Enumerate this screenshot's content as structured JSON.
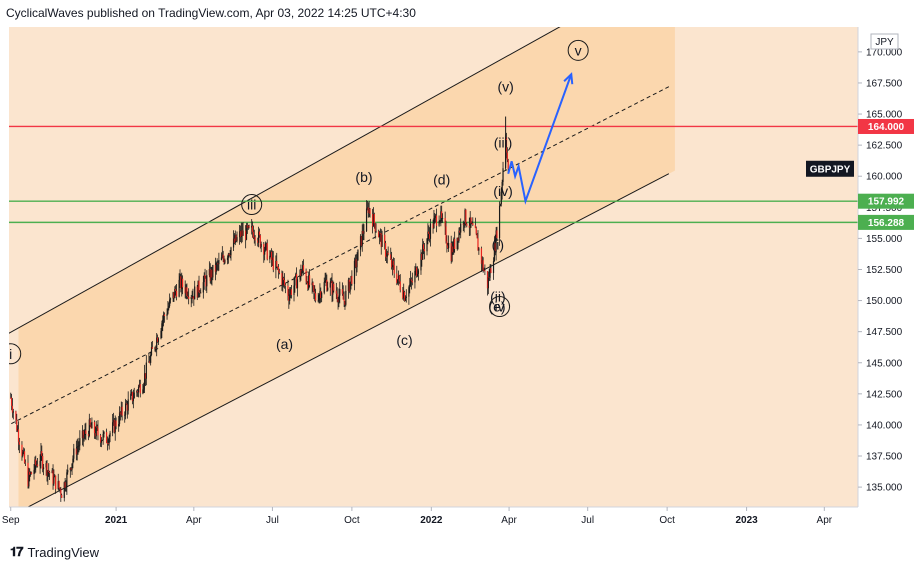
{
  "header": {
    "publish_line": "CyclicalWaves published on TradingView.com, Apr 03, 2022 14:25 UTC+4:30"
  },
  "footer": {
    "logo_text": "TradingView"
  },
  "colors": {
    "channel_fill": "#fbd7ae",
    "background": "#fbe5cf",
    "candle_up": "#1a1a1a",
    "candle_down": "#e8231e",
    "red_line": "#f23645",
    "green_line": "#4caf50",
    "projection": "#2962ff"
  },
  "chart_data": {
    "type": "candlestick",
    "symbol": "GBPJPY",
    "currency": "JPY",
    "y_axis": {
      "ticks": [
        170.0,
        167.5,
        165.0,
        162.5,
        160.0,
        157.5,
        155.0,
        152.5,
        150.0,
        147.5,
        145.0,
        142.5,
        140.0,
        137.5,
        135.0
      ],
      "tick_labels": [
        "170.000",
        "167.500",
        "165.000",
        "162.500",
        "160.000",
        "157.500",
        "155.000",
        "152.500",
        "150.000",
        "147.500",
        "145.000",
        "142.500",
        "140.000",
        "137.500",
        "135.000"
      ],
      "ylim": [
        133.4,
        172.0
      ]
    },
    "x_axis": {
      "ticks": [
        "2020-09-01",
        "2021-01-01",
        "2021-04-01",
        "2021-07-01",
        "2021-10-01",
        "2022-01-01",
        "2022-04-01",
        "2022-07-01",
        "2022-10-01",
        "2023-01-01",
        "2023-04-01"
      ],
      "tick_labels": [
        "Sep",
        "2021",
        "Apr",
        "Jul",
        "Oct",
        "2022",
        "Apr",
        "Jul",
        "Oct",
        "2023",
        "Apr"
      ],
      "xlim": [
        "2020-08-30",
        "2023-05-10"
      ]
    },
    "price_path": [
      {
        "x": "2020-09-01",
        "y": 142.2
      },
      {
        "x": "2020-09-21",
        "y": 135.6
      },
      {
        "x": "2020-10-05",
        "y": 137.4
      },
      {
        "x": "2020-10-30",
        "y": 134.6
      },
      {
        "x": "2020-11-15",
        "y": 138.0
      },
      {
        "x": "2020-12-01",
        "y": 139.8
      },
      {
        "x": "2020-12-20",
        "y": 138.8
      },
      {
        "x": "2021-01-10",
        "y": 141.2
      },
      {
        "x": "2021-02-01",
        "y": 143.5
      },
      {
        "x": "2021-02-24",
        "y": 148.5
      },
      {
        "x": "2021-03-15",
        "y": 151.4
      },
      {
        "x": "2021-03-31",
        "y": 150.5
      },
      {
        "x": "2021-04-20",
        "y": 152.0
      },
      {
        "x": "2021-05-06",
        "y": 153.5
      },
      {
        "x": "2021-05-25",
        "y": 155.3
      },
      {
        "x": "2021-06-10",
        "y": 155.6
      },
      {
        "x": "2021-06-24",
        "y": 154.0
      },
      {
        "x": "2021-07-10",
        "y": 152.0
      },
      {
        "x": "2021-07-20",
        "y": 150.5
      },
      {
        "x": "2021-08-05",
        "y": 152.5
      },
      {
        "x": "2021-08-20",
        "y": 150.2
      },
      {
        "x": "2021-09-01",
        "y": 151.5
      },
      {
        "x": "2021-09-22",
        "y": 150.0
      },
      {
        "x": "2021-10-06",
        "y": 153.0
      },
      {
        "x": "2021-10-20",
        "y": 157.5
      },
      {
        "x": "2021-11-03",
        "y": 155.0
      },
      {
        "x": "2021-11-18",
        "y": 152.5
      },
      {
        "x": "2021-12-01",
        "y": 150.5
      },
      {
        "x": "2021-12-10",
        "y": 151.5
      },
      {
        "x": "2021-12-31",
        "y": 155.8
      },
      {
        "x": "2022-01-10",
        "y": 157.0
      },
      {
        "x": "2022-01-24",
        "y": 153.8
      },
      {
        "x": "2022-02-08",
        "y": 156.8
      },
      {
        "x": "2022-02-20",
        "y": 155.5
      },
      {
        "x": "2022-03-07",
        "y": 151.3
      },
      {
        "x": "2022-03-16",
        "y": 154.5
      },
      {
        "x": "2022-03-22",
        "y": 158.0
      },
      {
        "x": "2022-03-28",
        "y": 163.5
      },
      {
        "x": "2022-03-31",
        "y": 160.2
      }
    ],
    "channel": {
      "upper": [
        {
          "x": "2020-09-10",
          "y": 147.8
        },
        {
          "x": "2022-07-15",
          "y": 173.8
        }
      ],
      "lower": [
        {
          "x": "2020-09-10",
          "y": 133.0
        },
        {
          "x": "2022-10-03",
          "y": 160.2
        }
      ],
      "midline": [
        {
          "x": "2020-09-10",
          "y": 140.4
        },
        {
          "x": "2022-10-03",
          "y": 167.2
        }
      ],
      "fill_until": "2022-10-10"
    },
    "horizontal_levels": [
      {
        "value": 164.0,
        "label": "164.000",
        "color": "#f23645"
      },
      {
        "value": 157.992,
        "label": "157.992",
        "color": "#4caf50"
      },
      {
        "value": 156.288,
        "label": "156.288",
        "color": "#4caf50"
      }
    ],
    "projection": [
      {
        "x": "2022-03-31",
        "y": 160.2
      },
      {
        "x": "2022-04-04",
        "y": 161.2
      },
      {
        "x": "2022-04-08",
        "y": 160.0
      },
      {
        "x": "2022-04-12",
        "y": 160.8
      },
      {
        "x": "2022-04-20",
        "y": 158.0
      },
      {
        "x": "2022-06-12",
        "y": 168.2
      }
    ],
    "annotations": [
      {
        "text": "i",
        "x": "2020-09-01",
        "y": 145.4,
        "circled": true
      },
      {
        "text": "iii",
        "x": "2021-06-07",
        "y": 157.4,
        "circled": true
      },
      {
        "text": "(a)",
        "x": "2021-07-15",
        "y": 146.2,
        "circled": false
      },
      {
        "text": "(b)",
        "x": "2021-10-15",
        "y": 159.6,
        "circled": false
      },
      {
        "text": "(c)",
        "x": "2021-12-01",
        "y": 146.5,
        "circled": false
      },
      {
        "text": "(d)",
        "x": "2022-01-13",
        "y": 159.4,
        "circled": false
      },
      {
        "text": "(i)",
        "x": "2022-03-19",
        "y": 154.2,
        "circled": false
      },
      {
        "text": "(ii)",
        "x": "2022-03-19",
        "y": 150.0,
        "circled": false
      },
      {
        "text": "(e)",
        "x": "2022-03-18",
        "y": 149.2,
        "circled": false
      },
      {
        "text": "iv",
        "x": "2022-03-21",
        "y": 149.2,
        "circled": true
      },
      {
        "text": "(iii)",
        "x": "2022-03-25",
        "y": 162.4,
        "circled": false
      },
      {
        "text": "(iv)",
        "x": "2022-03-25",
        "y": 158.5,
        "circled": false
      },
      {
        "text": "(v)",
        "x": "2022-03-28",
        "y": 166.9,
        "circled": false
      },
      {
        "text": "v",
        "x": "2022-06-20",
        "y": 169.8,
        "circled": true
      }
    ],
    "title": ""
  }
}
